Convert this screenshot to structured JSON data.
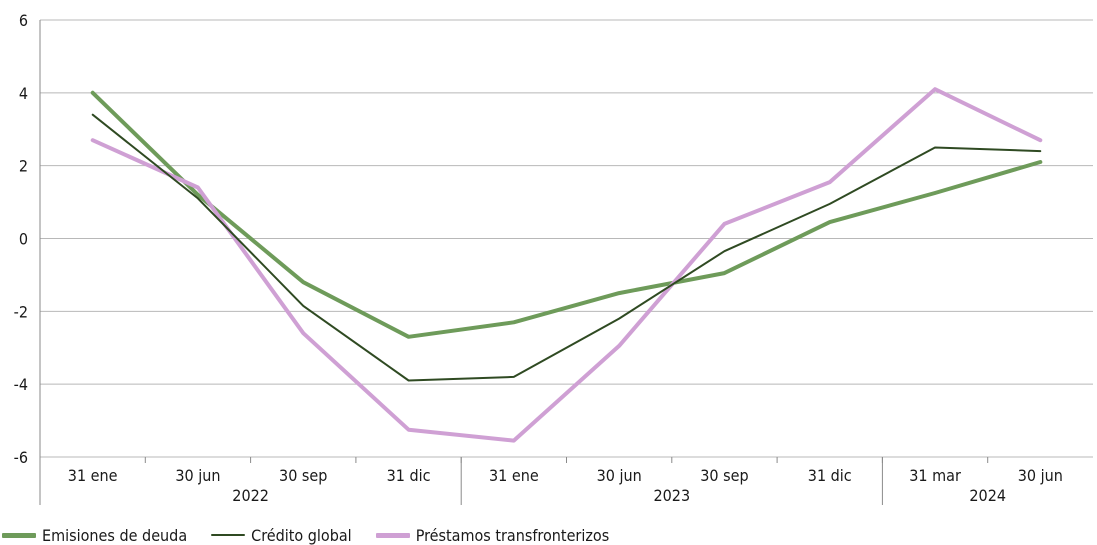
{
  "chart_data": {
    "type": "line",
    "title": "",
    "xlabel": "",
    "ylabel": "",
    "ylim": [
      -6,
      6
    ],
    "yticks": [
      -6,
      -4,
      -2,
      0,
      2,
      4,
      6
    ],
    "grid": true,
    "legend_position": "bottom",
    "categories": [
      "31 ene",
      "30 jun",
      "30 sep",
      "31 dic",
      "31 ene",
      "30 jun",
      "30 sep",
      "31 dic",
      "31 mar",
      "30 jun"
    ],
    "year_groups": [
      {
        "label": "2022",
        "start": 0,
        "end": 3
      },
      {
        "label": "2023",
        "start": 4,
        "end": 7
      },
      {
        "label": "2024",
        "start": 8,
        "end": 9
      }
    ],
    "series": [
      {
        "name": "Emisiones de deuda",
        "color": "#6e9b5a",
        "width": 4,
        "values": [
          4.0,
          1.2,
          -1.2,
          -2.7,
          -2.3,
          -1.5,
          -0.95,
          0.45,
          1.25,
          2.1
        ]
      },
      {
        "name": "Crédito global",
        "color": "#2f4a22",
        "width": 2,
        "values": [
          3.4,
          1.1,
          -1.85,
          -3.9,
          -3.8,
          -2.2,
          -0.35,
          0.95,
          2.5,
          2.4
        ]
      },
      {
        "name": "Préstamos transfronterizos",
        "color": "#cfa0d4",
        "width": 4,
        "values": [
          2.7,
          1.4,
          -2.6,
          -5.25,
          -5.55,
          -2.95,
          0.4,
          1.55,
          4.1,
          2.7
        ]
      }
    ]
  }
}
